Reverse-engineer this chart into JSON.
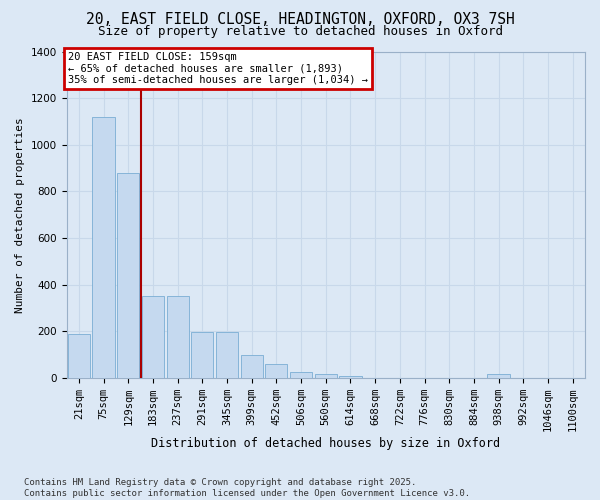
{
  "title1": "20, EAST FIELD CLOSE, HEADINGTON, OXFORD, OX3 7SH",
  "title2": "Size of property relative to detached houses in Oxford",
  "xlabel": "Distribution of detached houses by size in Oxford",
  "ylabel": "Number of detached properties",
  "categories": [
    "21sqm",
    "75sqm",
    "129sqm",
    "183sqm",
    "237sqm",
    "291sqm",
    "345sqm",
    "399sqm",
    "452sqm",
    "506sqm",
    "560sqm",
    "614sqm",
    "668sqm",
    "722sqm",
    "776sqm",
    "830sqm",
    "884sqm",
    "938sqm",
    "992sqm",
    "1046sqm",
    "1100sqm"
  ],
  "values": [
    190,
    1120,
    880,
    350,
    350,
    195,
    195,
    100,
    60,
    25,
    18,
    10,
    0,
    0,
    0,
    0,
    0,
    15,
    0,
    0,
    0
  ],
  "bar_color": "#c5d9ef",
  "bar_edge_color": "#7aadd4",
  "vline_color": "#aa0000",
  "vline_pos": 2.5,
  "annotation_text": "20 EAST FIELD CLOSE: 159sqm\n← 65% of detached houses are smaller (1,893)\n35% of semi-detached houses are larger (1,034) →",
  "annotation_box_edge_color": "#cc0000",
  "ylim_max": 1400,
  "yticks": [
    0,
    200,
    400,
    600,
    800,
    1000,
    1200,
    1400
  ],
  "bg_color": "#dce8f5",
  "grid_color": "#c8d8ea",
  "footer": "Contains HM Land Registry data © Crown copyright and database right 2025.\nContains public sector information licensed under the Open Government Licence v3.0.",
  "title1_fontsize": 10.5,
  "title2_fontsize": 9,
  "xlabel_fontsize": 8.5,
  "ylabel_fontsize": 8,
  "tick_fontsize": 7.5,
  "footer_fontsize": 6.5,
  "ann_fontsize": 7.5
}
